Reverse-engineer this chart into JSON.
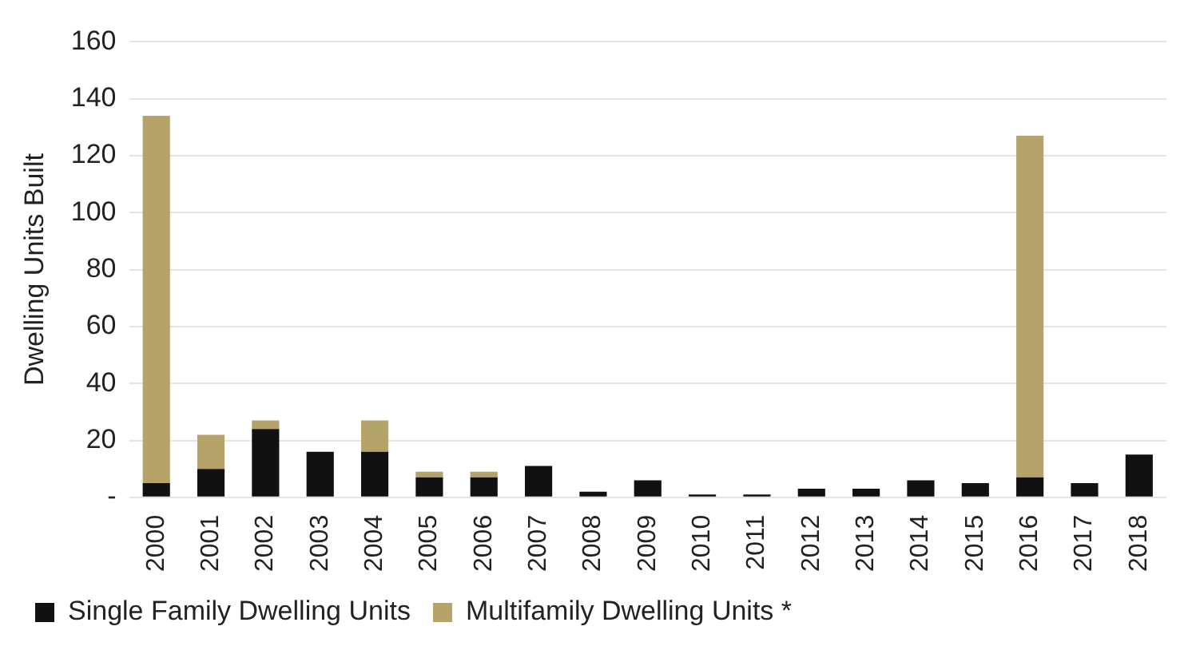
{
  "chart_data": {
    "type": "bar",
    "stacked": true,
    "ylabel": "Dwelling Units Built",
    "categories": [
      "2000",
      "2001",
      "2002",
      "2003",
      "2004",
      "2005",
      "2006",
      "2007",
      "2008",
      "2009",
      "2010",
      "2011",
      "2012",
      "2013",
      "2014",
      "2015",
      "2016",
      "2017",
      "2018"
    ],
    "series": [
      {
        "name": "Single Family Dwelling Units",
        "color": "#111111",
        "values": [
          5,
          10,
          24,
          16,
          16,
          7,
          7,
          11,
          2,
          6,
          1,
          1,
          3,
          3,
          6,
          5,
          7,
          5,
          15
        ]
      },
      {
        "name": "Multifamily Dwelling Units *",
        "color": "#b5a36a",
        "values": [
          129,
          12,
          3,
          0,
          11,
          2,
          2,
          0,
          0,
          0,
          0,
          0,
          0,
          0,
          0,
          0,
          120,
          0,
          0
        ]
      }
    ],
    "ylim": [
      0,
      160
    ],
    "yticks": [
      {
        "value": 0,
        "label": "-"
      },
      20,
      40,
      60,
      80,
      100,
      120,
      140,
      160
    ],
    "grid": "y",
    "legend": "bottom"
  }
}
